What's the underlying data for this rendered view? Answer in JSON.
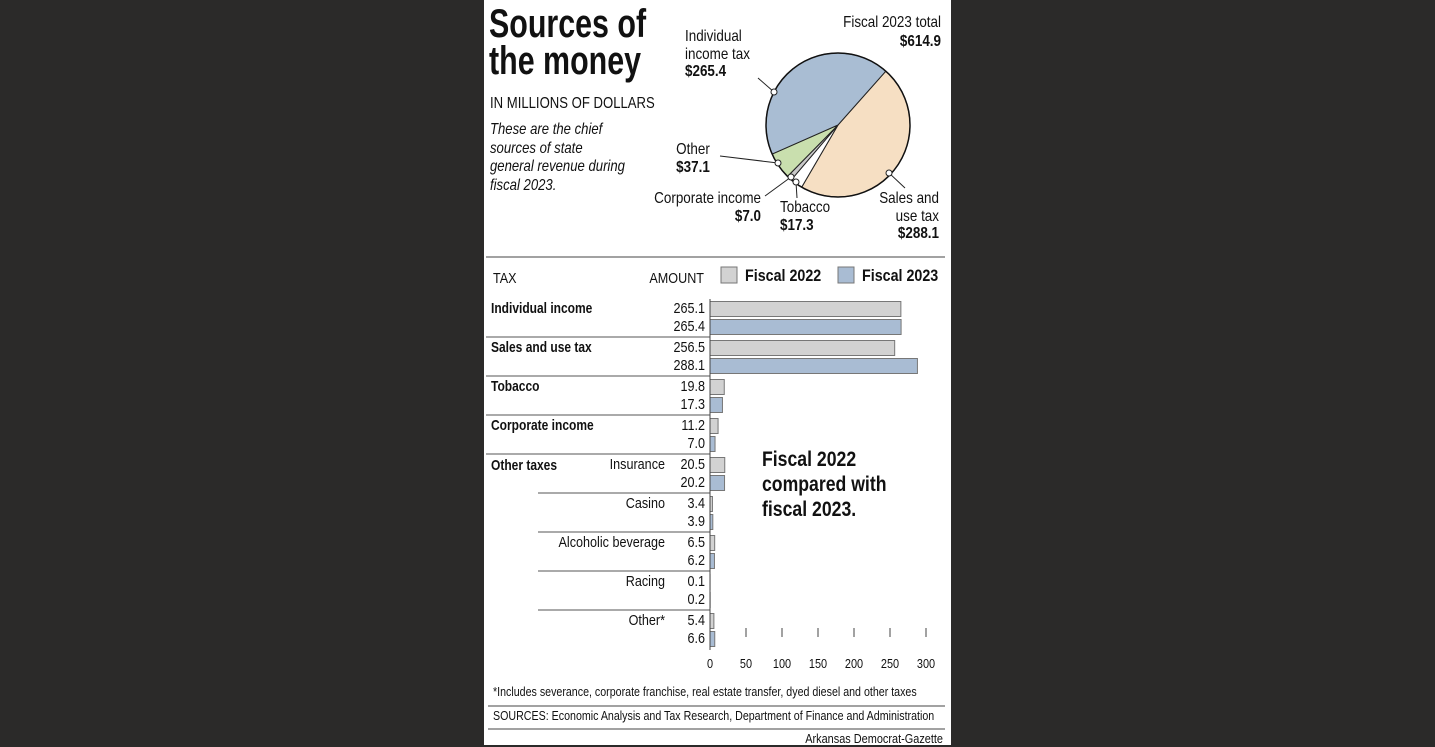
{
  "chart_data": [
    {
      "type": "pie",
      "title": "Sources of the money",
      "subtitle": "IN MILLIONS OF DOLLARS",
      "description": "These are the chief sources of state general revenue during fiscal 2023.",
      "total_title": "Fiscal 2023 total",
      "total": "$614.9",
      "categories": [
        "Sales and use tax",
        "Tobacco",
        "Corporate income",
        "Other",
        "Individual income tax"
      ],
      "values": [
        288.1,
        17.3,
        7.0,
        37.1,
        265.4
      ],
      "value_labels": [
        "$288.1",
        "$17.3",
        "$7.0",
        "$37.1",
        "$265.4"
      ],
      "colors": [
        "#f6dfc3",
        "#ffffff",
        "#c9c9c9",
        "#c9dfae",
        "#a9bdd3"
      ]
    },
    {
      "type": "bar",
      "orientation": "horizontal",
      "category_axis_label": "TAX",
      "value_axis_label": "AMOUNT",
      "categories": [
        "Individual income",
        "Sales and use tax",
        "Tobacco",
        "Corporate income",
        "Insurance",
        "Casino",
        "Alcoholic beverage",
        "Racing",
        "Other*"
      ],
      "group_labels": [
        null,
        null,
        null,
        null,
        "Other taxes",
        null,
        null,
        null,
        null
      ],
      "series": [
        {
          "name": "Fiscal 2022",
          "color": "#d2d2d2",
          "values": [
            265.1,
            256.5,
            19.8,
            11.2,
            20.5,
            3.4,
            6.5,
            0.1,
            5.4
          ],
          "value_labels": [
            "265.1",
            "256.5",
            "19.8",
            "11.2",
            "20.5",
            "3.4",
            "6.5",
            "0.1",
            "5.4"
          ]
        },
        {
          "name": "Fiscal 2023",
          "color": "#a9bcd3",
          "values": [
            265.4,
            288.1,
            17.3,
            7.0,
            20.2,
            3.9,
            6.2,
            0.2,
            6.6
          ],
          "value_labels": [
            "265.4",
            "288.1",
            "17.3",
            "7.0",
            "20.2",
            "3.9",
            "6.2",
            "0.2",
            "6.6"
          ]
        }
      ],
      "xlim": [
        0,
        300
      ],
      "xticks": [
        0,
        50,
        100,
        150,
        200,
        250,
        300
      ],
      "annotation": "Fiscal 2022 compared with fiscal 2023.",
      "footnote": "*Includes severance, corporate franchise, real estate transfer, dyed diesel and other taxes",
      "source": "SOURCES: Economic Analysis and Tax Research, Department of Finance and Administration",
      "credit": "Arkansas Democrat-Gazette"
    }
  ]
}
